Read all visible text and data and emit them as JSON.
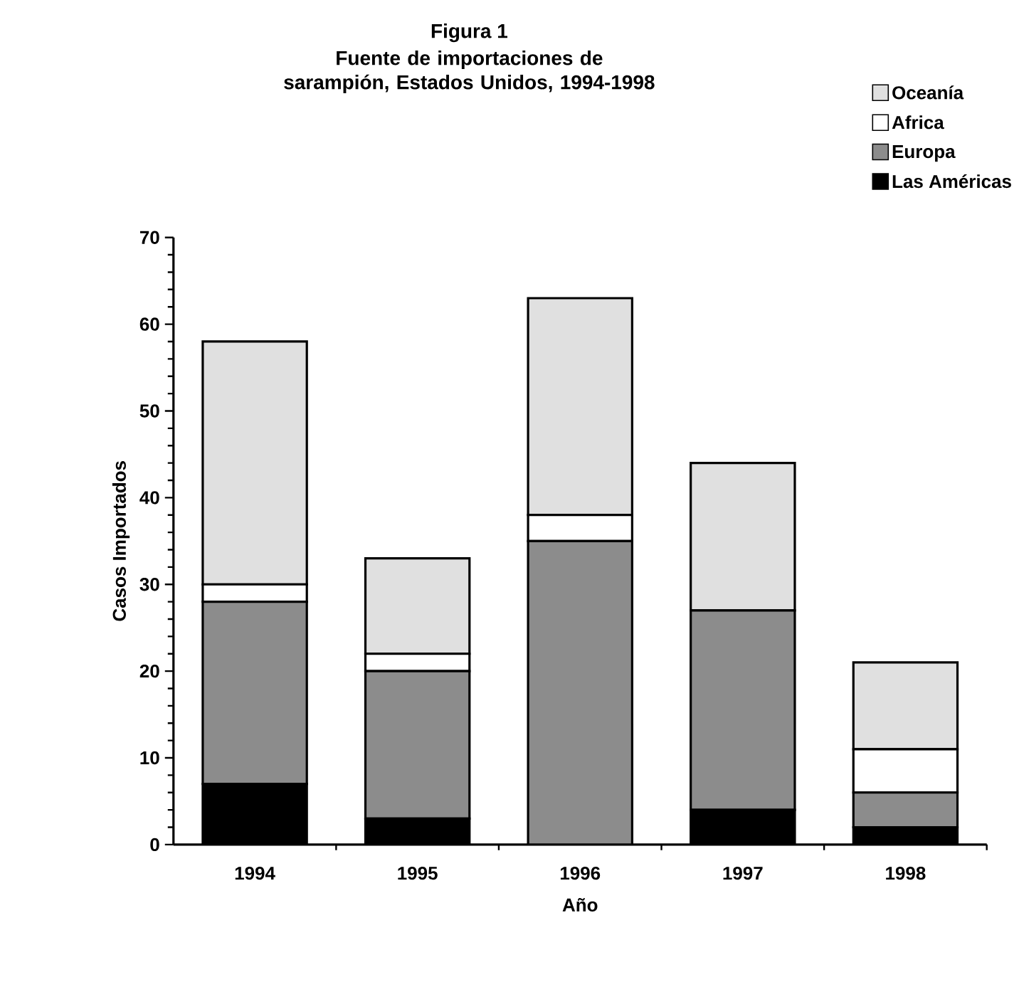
{
  "chart_data": {
    "type": "bar",
    "title": "Figura 1",
    "subtitle": "Fuente de importaciones de sarampión, Estados Unidos, 1994-1998",
    "xlabel": "Año",
    "ylabel": "Casos Importados",
    "categories": [
      "1994",
      "1995",
      "1996",
      "1997",
      "1998"
    ],
    "stacked": true,
    "series": [
      {
        "name": "Las Américas",
        "color": "#000000",
        "values": [
          7,
          3,
          0,
          4,
          2
        ]
      },
      {
        "name": "Europa",
        "color": "#8c8c8c",
        "values": [
          21,
          17,
          35,
          23,
          4
        ]
      },
      {
        "name": "Africa",
        "color": "#ffffff",
        "values": [
          2,
          2,
          3,
          0,
          5
        ]
      },
      {
        "name": "Oceanía",
        "color": "#e0e0e0",
        "values": [
          28,
          11,
          25,
          17,
          10
        ]
      }
    ],
    "ylim": [
      0,
      70
    ],
    "yticks": [
      0,
      10,
      20,
      30,
      40,
      50,
      60,
      70
    ],
    "grid": false,
    "legend": "top right"
  }
}
